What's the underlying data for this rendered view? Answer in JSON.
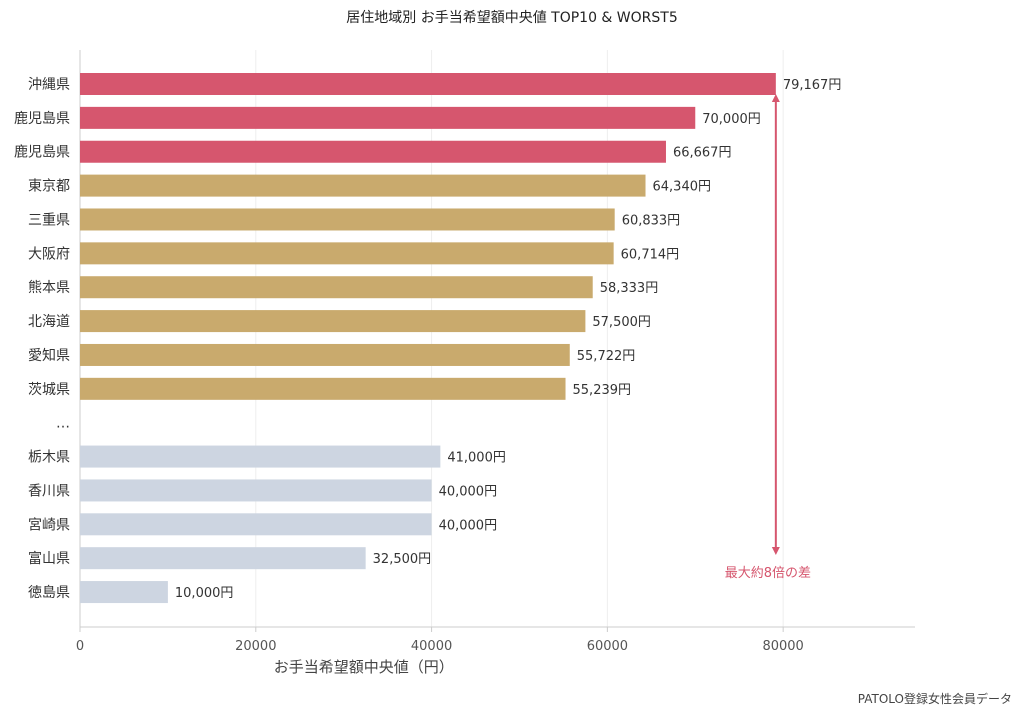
{
  "chart_data": {
    "type": "bar",
    "orientation": "horizontal",
    "title": "居住地域別 お手当希望額中央値 TOP10 & WORST5",
    "xlabel": "お手当希望額中央値（円）",
    "ylabel": "",
    "xlim": [
      0,
      95000
    ],
    "x_ticks": [
      0,
      20000,
      40000,
      60000,
      80000
    ],
    "grid": "vertical",
    "value_suffix": "円",
    "categories": [
      "沖縄県",
      "鹿児島県",
      "鹿児島県",
      "東京都",
      "三重県",
      "大阪府",
      "熊本県",
      "北海道",
      "愛知県",
      "茨城県",
      "…",
      "栃木県",
      "香川県",
      "宮崎県",
      "富山県",
      "徳島県"
    ],
    "values": [
      79167,
      70000,
      66667,
      64340,
      60833,
      60714,
      58333,
      57500,
      55722,
      55239,
      null,
      41000,
      40000,
      40000,
      32500,
      10000
    ],
    "value_labels": [
      "79,167円",
      "70,000円",
      "66,667円",
      "64,340円",
      "60,833円",
      "60,714円",
      "58,333円",
      "57,500円",
      "55,722円",
      "55,239円",
      "",
      "41,000円",
      "40,000円",
      "40,000円",
      "32,500円",
      "10,000円"
    ],
    "groups": [
      "top3",
      "top3",
      "top3",
      "top10",
      "top10",
      "top10",
      "top10",
      "top10",
      "top10",
      "top10",
      "gap",
      "worst5",
      "worst5",
      "worst5",
      "worst5",
      "worst5"
    ],
    "annotation": {
      "text": "最大約8倍の差",
      "from_value": 79167,
      "to_category_index": 15
    },
    "source": "PATOLO登録女性会員データ"
  },
  "colors": {
    "top3": "#d6566e",
    "top10": "#c9aa6d",
    "worst5": "#cdd5e1",
    "annotation": "#d6566e",
    "grid": "#eeeeee",
    "axis": "#cccccc"
  }
}
